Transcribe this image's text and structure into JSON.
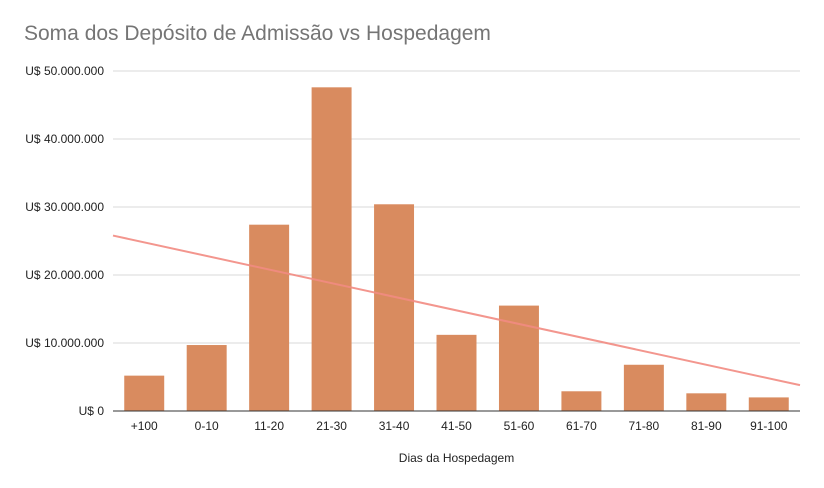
{
  "chart_data": {
    "type": "bar",
    "title": "Soma dos Depósito de Admissão vs Hospedagem",
    "xlabel": "Dias da Hospedagem",
    "ylabel": "",
    "categories": [
      "+100",
      "0-10",
      "11-20",
      "21-30",
      "31-40",
      "41-50",
      "51-60",
      "61-70",
      "71-80",
      "81-90",
      "91-100"
    ],
    "series": [
      {
        "values": [
          5200000,
          9700000,
          27400000,
          47600000,
          30400000,
          11200000,
          15500000,
          2900000,
          6800000,
          2600000,
          2000000
        ],
        "color": "#d98b5f"
      }
    ],
    "trendline": {
      "type": "linear",
      "start": 25800000,
      "end": 3800000,
      "color": "#f28b82"
    },
    "ylim": [
      0,
      50000000
    ],
    "yticks": [
      0,
      10000000,
      20000000,
      30000000,
      40000000,
      50000000
    ],
    "ytick_labels": [
      "U$ 0",
      "U$ 10.000.000",
      "U$ 20.000.000",
      "U$ 30.000.000",
      "U$ 40.000.000",
      "U$ 50.000.000"
    ],
    "grid": true,
    "legend": "none"
  }
}
